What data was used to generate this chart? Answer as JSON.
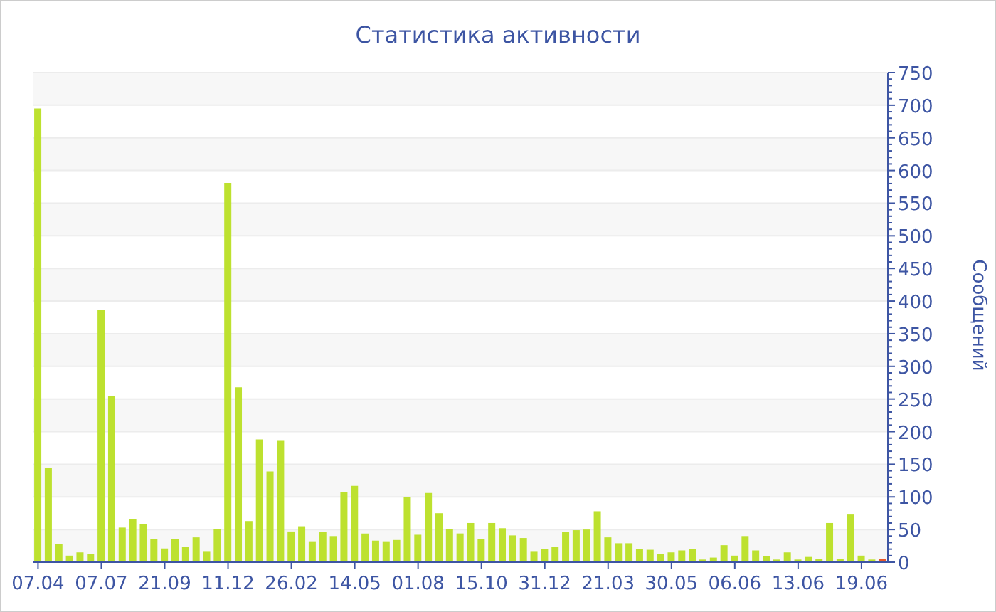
{
  "chart_data": {
    "type": "bar",
    "title": "Статистика активности",
    "ylabel": "Сообщений",
    "categories": [
      "07.04",
      null,
      null,
      null,
      null,
      null,
      "07.07",
      null,
      null,
      null,
      null,
      null,
      "21.09",
      null,
      null,
      null,
      null,
      null,
      "11.12",
      null,
      null,
      null,
      null,
      null,
      "26.02",
      null,
      null,
      null,
      null,
      null,
      "14.05",
      null,
      null,
      null,
      null,
      null,
      "01.08",
      null,
      null,
      null,
      null,
      null,
      "15.10",
      null,
      null,
      null,
      null,
      null,
      "31.12",
      null,
      null,
      null,
      null,
      null,
      "21.03",
      null,
      null,
      null,
      null,
      null,
      "30.05",
      null,
      null,
      null,
      null,
      null,
      "06.06",
      null,
      null,
      null,
      null,
      null,
      "13.06",
      null,
      null,
      null,
      null,
      null,
      "19.06",
      null,
      null
    ],
    "values": [
      695,
      145,
      28,
      10,
      15,
      13,
      386,
      254,
      53,
      66,
      58,
      35,
      21,
      35,
      23,
      38,
      17,
      51,
      581,
      268,
      63,
      188,
      139,
      186,
      47,
      55,
      32,
      46,
      40,
      108,
      117,
      44,
      33,
      32,
      34,
      100,
      42,
      106,
      75,
      51,
      44,
      60,
      36,
      60,
      52,
      41,
      37,
      17,
      20,
      24,
      46,
      49,
      50,
      78,
      38,
      29,
      29,
      20,
      19,
      13,
      15,
      18,
      20,
      4,
      7,
      26,
      10,
      40,
      18,
      9,
      4,
      15,
      4,
      8,
      5,
      60,
      5,
      74,
      10,
      4,
      5
    ],
    "colors": [
      "#bde12f",
      "#bde12f",
      "#bde12f",
      "#bde12f",
      "#bde12f",
      "#bde12f",
      "#bde12f",
      "#bde12f",
      "#bde12f",
      "#bde12f",
      "#bde12f",
      "#bde12f",
      "#bde12f",
      "#bde12f",
      "#bde12f",
      "#bde12f",
      "#bde12f",
      "#bde12f",
      "#bde12f",
      "#bde12f",
      "#bde12f",
      "#bde12f",
      "#bde12f",
      "#bde12f",
      "#bde12f",
      "#bde12f",
      "#bde12f",
      "#bde12f",
      "#bde12f",
      "#bde12f",
      "#bde12f",
      "#bde12f",
      "#bde12f",
      "#bde12f",
      "#bde12f",
      "#bde12f",
      "#bde12f",
      "#bde12f",
      "#bde12f",
      "#bde12f",
      "#bde12f",
      "#bde12f",
      "#bde12f",
      "#bde12f",
      "#bde12f",
      "#bde12f",
      "#bde12f",
      "#bde12f",
      "#bde12f",
      "#bde12f",
      "#bde12f",
      "#bde12f",
      "#bde12f",
      "#bde12f",
      "#bde12f",
      "#bde12f",
      "#bde12f",
      "#bde12f",
      "#bde12f",
      "#bde12f",
      "#bde12f",
      "#bde12f",
      "#bde12f",
      "#bde12f",
      "#bde12f",
      "#bde12f",
      "#bde12f",
      "#bde12f",
      "#bde12f",
      "#bde12f",
      "#bde12f",
      "#bde12f",
      "#bde12f",
      "#bde12f",
      "#bde12f",
      "#bde12f",
      "#bde12f",
      "#bde12f",
      "#bde12f",
      "#bde12f",
      "#e8572a"
    ],
    "ylim": [
      0,
      750
    ],
    "yticks": [
      0,
      {
        "value": 10,
        "label": null
      },
      {
        "value": 20,
        "label": null
      },
      {
        "value": 30,
        "label": null
      },
      {
        "value": 40,
        "label": null
      },
      50,
      {
        "value": 60,
        "label": null
      },
      {
        "value": 70,
        "label": null
      },
      {
        "value": 80,
        "label": null
      },
      {
        "value": 90,
        "label": null
      },
      100,
      {
        "value": 110,
        "label": null
      },
      {
        "value": 120,
        "label": null
      },
      {
        "value": 130,
        "label": null
      },
      {
        "value": 140,
        "label": null
      },
      150,
      {
        "value": 160,
        "label": null
      },
      {
        "value": 170,
        "label": null
      },
      {
        "value": 180,
        "label": null
      },
      {
        "value": 190,
        "label": null
      },
      200,
      {
        "value": 210,
        "label": null
      },
      {
        "value": 220,
        "label": null
      },
      {
        "value": 230,
        "label": null
      },
      {
        "value": 240,
        "label": null
      },
      250,
      {
        "value": 260,
        "label": null
      },
      {
        "value": 270,
        "label": null
      },
      {
        "value": 280,
        "label": null
      },
      {
        "value": 290,
        "label": null
      },
      300,
      {
        "value": 310,
        "label": null
      },
      {
        "value": 320,
        "label": null
      },
      {
        "value": 330,
        "label": null
      },
      {
        "value": 340,
        "label": null
      },
      350,
      {
        "value": 360,
        "label": null
      },
      {
        "value": 370,
        "label": null
      },
      {
        "value": 380,
        "label": null
      },
      {
        "value": 390,
        "label": null
      },
      400,
      {
        "value": 410,
        "label": null
      },
      {
        "value": 420,
        "label": null
      },
      {
        "value": 430,
        "label": null
      },
      {
        "value": 440,
        "label": null
      },
      450,
      {
        "value": 460,
        "label": null
      },
      {
        "value": 470,
        "label": null
      },
      {
        "value": 480,
        "label": null
      },
      {
        "value": 490,
        "label": null
      },
      500,
      {
        "value": 510,
        "label": null
      },
      {
        "value": 520,
        "label": null
      },
      {
        "value": 530,
        "label": null
      },
      {
        "value": 540,
        "label": null
      },
      550,
      {
        "value": 560,
        "label": null
      },
      {
        "value": 570,
        "label": null
      },
      {
        "value": 580,
        "label": null
      },
      {
        "value": 590,
        "label": null
      },
      600,
      {
        "value": 610,
        "label": null
      },
      {
        "value": 620,
        "label": null
      },
      {
        "value": 630,
        "label": null
      },
      {
        "value": 640,
        "label": null
      },
      650,
      {
        "value": 660,
        "label": null
      },
      {
        "value": 670,
        "label": null
      },
      {
        "value": 680,
        "label": null
      },
      {
        "value": 690,
        "label": null
      },
      700,
      {
        "value": 710,
        "label": null
      },
      {
        "value": 720,
        "label": null
      },
      {
        "value": 730,
        "label": null
      },
      {
        "value": 740,
        "label": null
      },
      750
    ],
    "grid": "y"
  }
}
